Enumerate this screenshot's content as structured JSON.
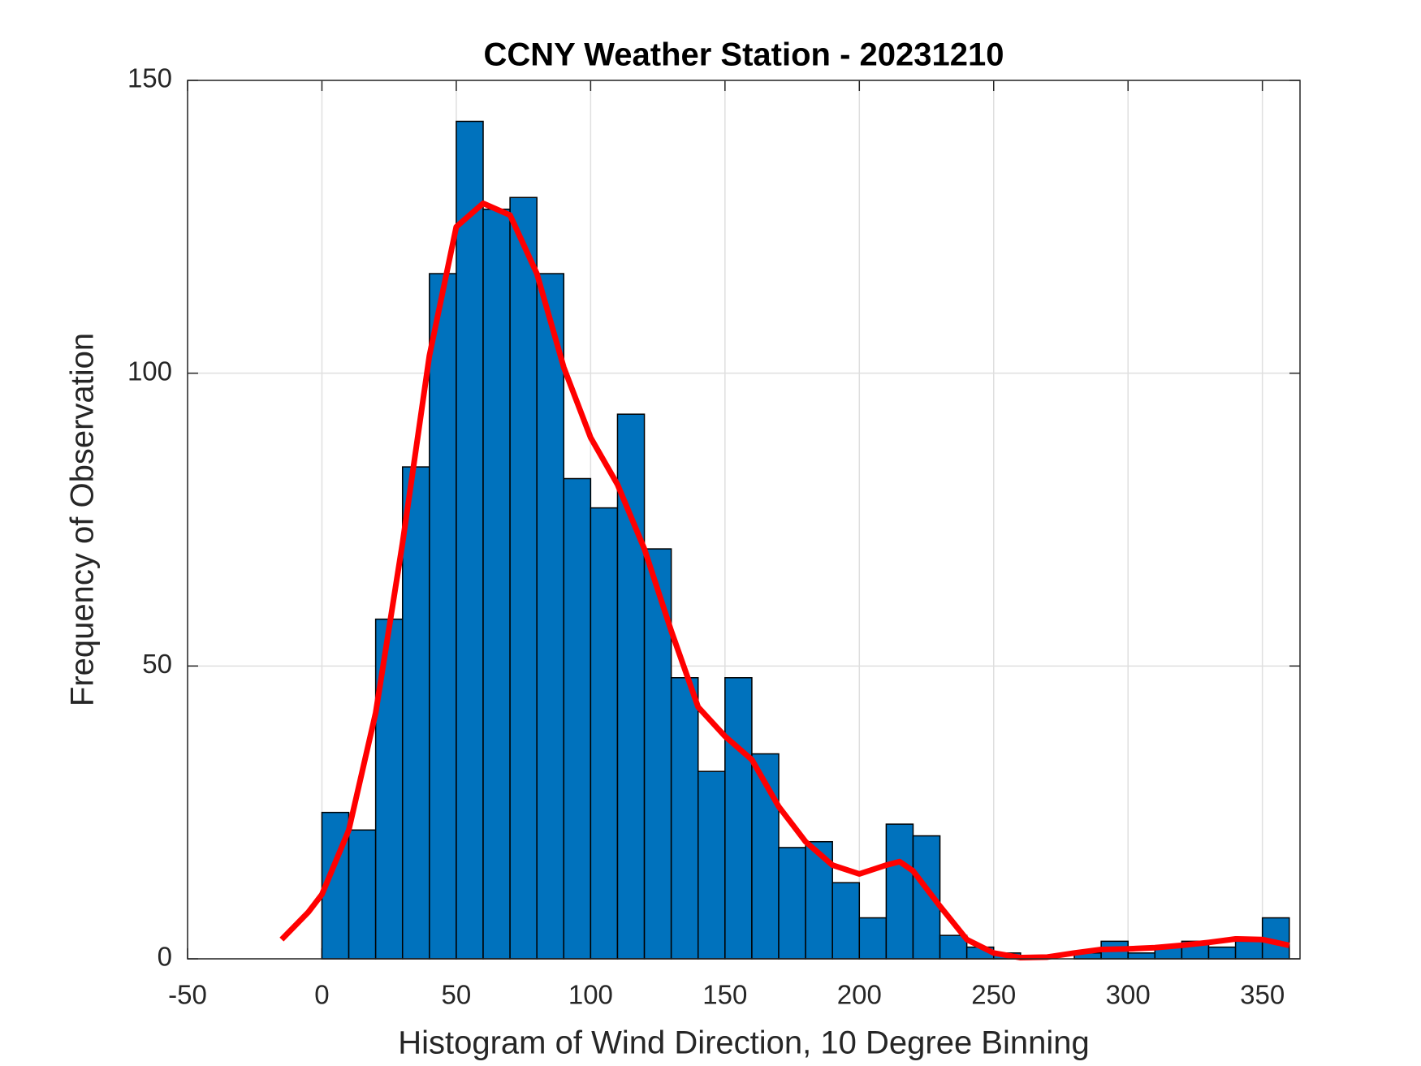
{
  "chart_data": {
    "type": "histogram",
    "title": "CCNY Weather Station - 20231210",
    "xlabel": "Histogram of Wind Direction, 10 Degree Binning",
    "ylabel": "Frequency of Observation",
    "bins": [
      0,
      10,
      20,
      30,
      40,
      50,
      60,
      70,
      80,
      90,
      100,
      110,
      120,
      130,
      140,
      150,
      160,
      170,
      180,
      190,
      200,
      210,
      220,
      230,
      240,
      250,
      260,
      270,
      280,
      290,
      300,
      310,
      320,
      330,
      340,
      350,
      360
    ],
    "counts": [
      25,
      22,
      58,
      84,
      117,
      143,
      128,
      130,
      117,
      82,
      77,
      93,
      70,
      48,
      32,
      48,
      35,
      19,
      20,
      13,
      7,
      23,
      21,
      4,
      2,
      1,
      0,
      0,
      1,
      3,
      1,
      2,
      3,
      2,
      3,
      7
    ],
    "color": "#0072bd",
    "curve": {
      "type": "line",
      "color": "#ff0000",
      "x": [
        -15,
        -5,
        0,
        10,
        20,
        30,
        40,
        50,
        60,
        70,
        80,
        90,
        100,
        110,
        120,
        130,
        140,
        150,
        160,
        170,
        180,
        190,
        200,
        210,
        215,
        220,
        230,
        240,
        250,
        260,
        270,
        280,
        290,
        300,
        310,
        320,
        330,
        340,
        350,
        360
      ],
      "values": [
        3.3,
        8,
        11,
        22,
        42,
        71,
        103,
        125,
        129,
        127,
        117,
        101,
        89,
        81,
        70,
        56,
        43,
        38,
        34,
        26,
        20,
        16,
        14.5,
        16,
        16.6,
        15,
        9,
        3.3,
        1,
        0.2,
        0.3,
        1,
        1.6,
        1.7,
        1.9,
        2.3,
        2.8,
        3.4,
        3.3,
        2.3
      ]
    },
    "xlim": [
      -50,
      364
    ],
    "ylim": [
      0,
      150
    ],
    "xticks": [
      -50,
      0,
      50,
      100,
      150,
      200,
      250,
      300,
      350
    ],
    "yticks": [
      0,
      50,
      100,
      150
    ],
    "grid": true
  }
}
